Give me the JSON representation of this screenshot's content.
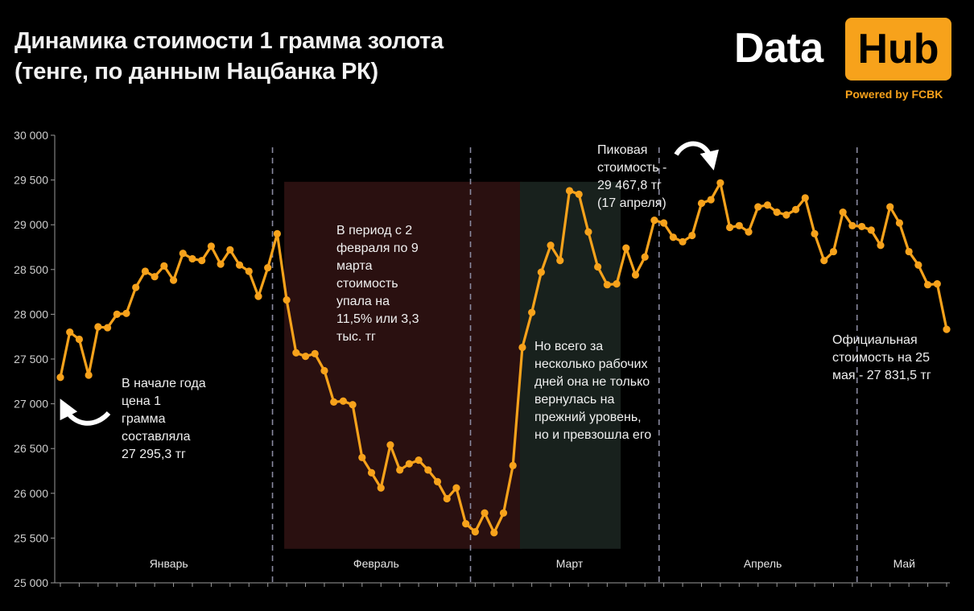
{
  "header": {
    "title_line1": "Динамика стоимости 1 грамма золота",
    "title_line2": "(тенге, по данным Нацбанка РК)"
  },
  "logo": {
    "word1": "Data",
    "word2": "Hub",
    "powered": "Powered by FCBK"
  },
  "annotations": {
    "start": [
      "В начале года",
      "цена 1",
      "грамма",
      "составляла",
      "27 295,3 тг"
    ],
    "drop": [
      "В период с 2",
      "февраля по 9",
      "марта",
      "стоимость",
      "упала на",
      "11,5% или 3,3",
      "тыс. тг"
    ],
    "recovery": [
      "Но всего за",
      "несколько рабочих",
      "дней она не только",
      "вернулась на",
      "прежний уровень,",
      "но и превзошла его"
    ],
    "peak": [
      "Пиковая",
      "стоимость -",
      "29 467,8 тг",
      "(17 апреля)"
    ],
    "official": [
      "Официальная",
      "стоимость на 25",
      "мая - 27 831,5 тг"
    ]
  },
  "colors": {
    "line": "#f7a21b",
    "drop_region": "#2a1010",
    "recovery_region": "#18211d",
    "month_divider": "#8a8aa0",
    "axis_text": "#cfcfcf"
  },
  "chart_data": {
    "type": "line",
    "title": "Динамика стоимости 1 грамма золота (тенге, по данным Нацбанка РК)",
    "xlabel": "",
    "ylabel": "",
    "ylim": [
      25000,
      30000
    ],
    "yticks": [
      25000,
      25500,
      26000,
      26500,
      27000,
      27500,
      28000,
      28500,
      29000,
      29500,
      30000
    ],
    "ytick_labels": [
      "25 000",
      "25 500",
      "26 000",
      "26 500",
      "27 000",
      "27 500",
      "28 000",
      "28 500",
      "29 000",
      "29 500",
      "30 000"
    ],
    "months": [
      "Январь",
      "Февраль",
      "Март",
      "Апрель",
      "Май"
    ],
    "month_start_index": [
      0,
      23,
      44,
      64,
      85
    ],
    "grid": false,
    "highlight_regions": [
      {
        "kind": "drop",
        "from_index": 24,
        "to_index": 49
      },
      {
        "kind": "recovery",
        "from_index": 49,
        "to_index": 59
      }
    ],
    "series": [
      {
        "values": [
          27295.3,
          27800,
          27720,
          27320,
          27860,
          27850,
          28000,
          28010,
          28300,
          28480,
          28420,
          28540,
          28380,
          28680,
          28620,
          28600,
          28760,
          28560,
          28720,
          28550,
          28480,
          28200,
          28520,
          28900,
          28160,
          27570,
          27530,
          27560,
          27370,
          27020,
          27030,
          26990,
          26400,
          26230,
          26060,
          26540,
          26260,
          26330,
          26370,
          26260,
          26130,
          25940,
          26060,
          25660,
          25570,
          25780,
          25560,
          25780,
          26310,
          27630,
          28020,
          28470,
          28770,
          28600,
          29380,
          29340,
          28920,
          28530,
          28330,
          28340,
          28740,
          28440,
          28640,
          29050,
          29020,
          28860,
          28810,
          28880,
          29240,
          29280,
          29467.8,
          28970,
          28990,
          28920,
          29200,
          29220,
          29140,
          29110,
          29170,
          29300,
          28900,
          28600,
          28700,
          29140,
          28990,
          28980,
          28940,
          28770,
          29200,
          29020,
          28700,
          28550,
          28330,
          28340,
          27831.5
        ]
      }
    ]
  }
}
